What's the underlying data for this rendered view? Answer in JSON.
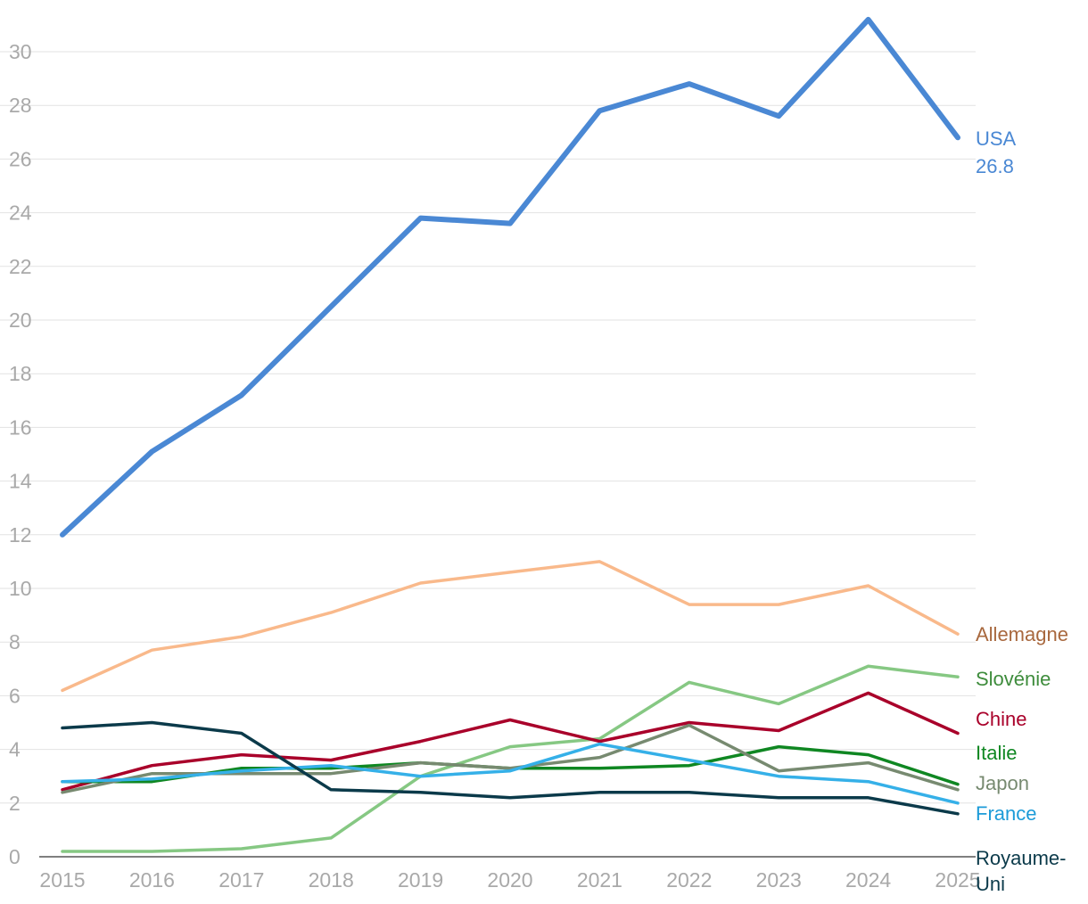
{
  "chart_data": {
    "type": "line",
    "title": "",
    "xlabel": "",
    "ylabel": "",
    "x": [
      2015,
      2016,
      2017,
      2018,
      2019,
      2020,
      2021,
      2022,
      2023,
      2024,
      2025
    ],
    "ylim": [
      0,
      31
    ],
    "yticks": [
      0,
      2,
      4,
      6,
      8,
      10,
      12,
      14,
      16,
      18,
      20,
      22,
      24,
      26,
      28,
      30
    ],
    "grid": true,
    "legend": "direct labels at right end of lines",
    "series": [
      {
        "name": "USA",
        "value_label": "26.8",
        "color": "#4a88d4",
        "label_color": "#4a88d4",
        "emphasis": true,
        "values": [
          12.0,
          15.1,
          17.2,
          20.5,
          23.8,
          23.6,
          27.8,
          28.8,
          27.6,
          31.2,
          26.8
        ]
      },
      {
        "name": "Allemagne",
        "color": "#f9b98b",
        "label_color": "#a8683e",
        "values": [
          6.2,
          7.7,
          8.2,
          9.1,
          10.2,
          10.6,
          11.0,
          9.4,
          9.4,
          10.1,
          8.3
        ]
      },
      {
        "name": "Slovénie",
        "color": "#86c883",
        "label_color": "#3e8c3c",
        "values": [
          0.2,
          0.2,
          0.3,
          0.7,
          3.0,
          4.1,
          4.4,
          6.5,
          5.7,
          7.1,
          6.7
        ]
      },
      {
        "name": "Chine",
        "color": "#a9002a",
        "label_color": "#a9002a",
        "values": [
          2.5,
          3.4,
          3.8,
          3.6,
          4.3,
          5.1,
          4.3,
          5.0,
          4.7,
          6.1,
          4.6
        ]
      },
      {
        "name": "Italie",
        "color": "#0f8722",
        "label_color": "#0f8722",
        "values": [
          2.8,
          2.8,
          3.3,
          3.3,
          3.5,
          3.3,
          3.3,
          3.4,
          4.1,
          3.8,
          2.7
        ]
      },
      {
        "name": "Japon",
        "color": "#778a70",
        "label_color": "#778a70",
        "values": [
          2.4,
          3.1,
          3.1,
          3.1,
          3.5,
          3.3,
          3.7,
          4.9,
          3.2,
          3.5,
          2.5
        ]
      },
      {
        "name": "France",
        "color": "#35b0e8",
        "label_color": "#1c9bd8",
        "values": [
          2.8,
          2.9,
          3.2,
          3.4,
          3.0,
          3.2,
          4.2,
          3.6,
          3.0,
          2.8,
          2.0
        ]
      },
      {
        "name": "Royaume-Uni",
        "color": "#0b3a4a",
        "label_color": "#0b3a4a",
        "values": [
          4.8,
          5.0,
          4.6,
          2.5,
          2.4,
          2.2,
          2.4,
          2.4,
          2.2,
          2.2,
          1.6
        ]
      }
    ]
  }
}
